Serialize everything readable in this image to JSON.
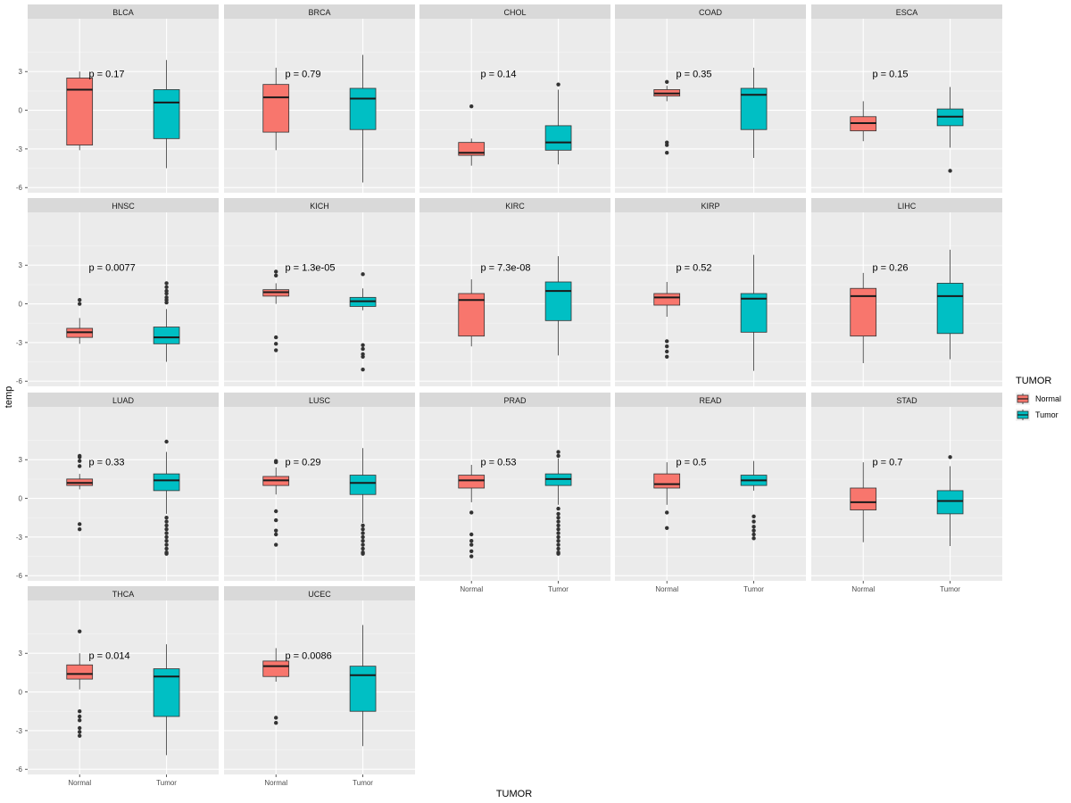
{
  "chart_data": {
    "type": "boxplot",
    "facet_by": "cancer_type",
    "x_label": "TUMOR",
    "y_label": "temp",
    "y_ticks": [
      -6,
      -3,
      0,
      3
    ],
    "ylim": [
      -6.4,
      7.1
    ],
    "categories": [
      "Normal",
      "Tumor"
    ],
    "legend": {
      "title": "TUMOR",
      "position": "right",
      "entries": [
        {
          "label": "Normal",
          "color": "#F8766D"
        },
        {
          "label": "Tumor",
          "color": "#00BFC4"
        }
      ]
    },
    "panels": [
      {
        "name": "BLCA",
        "p": "p = 0.17",
        "normal": {
          "q1": -2.7,
          "median": 1.6,
          "q3": 2.5,
          "low": -3.1,
          "high": 3.0,
          "outliers": []
        },
        "tumor": {
          "q1": -2.2,
          "median": 0.6,
          "q3": 1.6,
          "low": -4.5,
          "high": 3.9,
          "outliers": []
        }
      },
      {
        "name": "BRCA",
        "p": "p = 0.79",
        "normal": {
          "q1": -1.7,
          "median": 1.0,
          "q3": 2.0,
          "low": -3.1,
          "high": 3.3,
          "outliers": []
        },
        "tumor": {
          "q1": -1.5,
          "median": 0.9,
          "q3": 1.7,
          "low": -5.6,
          "high": 4.3,
          "outliers": []
        }
      },
      {
        "name": "CHOL",
        "p": "p = 0.14",
        "normal": {
          "q1": -3.5,
          "median": -3.3,
          "q3": -2.5,
          "low": -4.3,
          "high": -2.2,
          "outliers": [
            0.3
          ]
        },
        "tumor": {
          "q1": -3.1,
          "median": -2.5,
          "q3": -1.2,
          "low": -4.2,
          "high": 1.6,
          "outliers": [
            2.0
          ]
        }
      },
      {
        "name": "COAD",
        "p": "p = 0.35",
        "normal": {
          "q1": 1.1,
          "median": 1.3,
          "q3": 1.6,
          "low": 0.7,
          "high": 1.9,
          "outliers": [
            2.2,
            -2.5,
            -2.7,
            -3.3
          ]
        },
        "tumor": {
          "q1": -1.5,
          "median": 1.2,
          "q3": 1.7,
          "low": -3.7,
          "high": 3.3,
          "outliers": []
        }
      },
      {
        "name": "ESCA",
        "p": "p = 0.15",
        "normal": {
          "q1": -1.6,
          "median": -1.0,
          "q3": -0.5,
          "low": -2.4,
          "high": 0.7,
          "outliers": []
        },
        "tumor": {
          "q1": -1.2,
          "median": -0.5,
          "q3": 0.1,
          "low": -2.9,
          "high": 1.8,
          "outliers": [
            -4.7
          ]
        }
      },
      {
        "name": "HNSC",
        "p": "p = 0.0077",
        "normal": {
          "q1": -2.6,
          "median": -2.2,
          "q3": -1.9,
          "low": -3.1,
          "high": -1.1,
          "outliers": [
            0.3,
            0.0
          ]
        },
        "tumor": {
          "q1": -3.1,
          "median": -2.6,
          "q3": -1.8,
          "low": -4.5,
          "high": -0.4,
          "outliers": [
            0.1,
            0.3,
            0.5,
            0.8,
            1.0,
            1.3,
            1.6
          ]
        }
      },
      {
        "name": "KICH",
        "p": "p = 1.3e-05",
        "normal": {
          "q1": 0.6,
          "median": 0.9,
          "q3": 1.1,
          "low": 0.0,
          "high": 1.6,
          "outliers": [
            2.5,
            2.2,
            -2.6,
            -3.1,
            -3.6
          ]
        },
        "tumor": {
          "q1": -0.2,
          "median": 0.2,
          "q3": 0.5,
          "low": -0.5,
          "high": 1.2,
          "outliers": [
            2.3,
            -3.2,
            -3.5,
            -3.9,
            -4.1,
            -5.1
          ]
        }
      },
      {
        "name": "KIRC",
        "p": "p = 7.3e-08",
        "normal": {
          "q1": -2.5,
          "median": 0.3,
          "q3": 0.8,
          "low": -3.3,
          "high": 1.9,
          "outliers": []
        },
        "tumor": {
          "q1": -1.3,
          "median": 1.0,
          "q3": 1.7,
          "low": -4.0,
          "high": 3.7,
          "outliers": []
        }
      },
      {
        "name": "KIRP",
        "p": "p = 0.52",
        "normal": {
          "q1": -0.1,
          "median": 0.5,
          "q3": 0.8,
          "low": -1.0,
          "high": 1.7,
          "outliers": [
            -2.9,
            -3.3,
            -3.7,
            -4.1
          ]
        },
        "tumor": {
          "q1": -2.2,
          "median": 0.4,
          "q3": 0.8,
          "low": -5.2,
          "high": 3.8,
          "outliers": []
        }
      },
      {
        "name": "LIHC",
        "p": "p = 0.26",
        "normal": {
          "q1": -2.5,
          "median": 0.6,
          "q3": 1.2,
          "low": -4.6,
          "high": 2.4,
          "outliers": []
        },
        "tumor": {
          "q1": -2.3,
          "median": 0.6,
          "q3": 1.6,
          "low": -4.3,
          "high": 4.2,
          "outliers": []
        }
      },
      {
        "name": "LUAD",
        "p": "p = 0.33",
        "normal": {
          "q1": 1.0,
          "median": 1.2,
          "q3": 1.5,
          "low": 0.7,
          "high": 1.9,
          "outliers": [
            2.5,
            2.9,
            3.2,
            3.3,
            -2.0,
            -2.4
          ]
        },
        "tumor": {
          "q1": 0.6,
          "median": 1.4,
          "q3": 1.9,
          "low": -1.2,
          "high": 3.6,
          "outliers": [
            4.4,
            -1.5,
            -1.8,
            -2.1,
            -2.4,
            -2.7,
            -3.0,
            -3.3,
            -3.6,
            -3.9,
            -4.2,
            -4.3
          ]
        }
      },
      {
        "name": "LUSC",
        "p": "p = 0.29",
        "normal": {
          "q1": 1.0,
          "median": 1.4,
          "q3": 1.7,
          "low": 0.3,
          "high": 2.4,
          "outliers": [
            2.8,
            2.9,
            -1.0,
            -1.7,
            -2.5,
            -2.8,
            -3.6
          ]
        },
        "tumor": {
          "q1": 0.3,
          "median": 1.2,
          "q3": 1.8,
          "low": -1.9,
          "high": 3.9,
          "outliers": [
            -2.1,
            -2.4,
            -2.7,
            -3.0,
            -3.3,
            -3.6,
            -3.9,
            -4.2,
            -4.3
          ]
        }
      },
      {
        "name": "PRAD",
        "p": "p = 0.53",
        "normal": {
          "q1": 0.8,
          "median": 1.4,
          "q3": 1.8,
          "low": -0.3,
          "high": 2.6,
          "outliers": [
            -1.1,
            -2.8,
            -3.3,
            -3.6,
            -4.1,
            -4.5
          ]
        },
        "tumor": {
          "q1": 1.0,
          "median": 1.5,
          "q3": 1.9,
          "low": -0.5,
          "high": 3.1,
          "outliers": [
            3.3,
            3.6,
            -0.8,
            -1.2,
            -1.5,
            -1.8,
            -2.1,
            -2.4,
            -2.7,
            -3.0,
            -3.3,
            -3.6,
            -3.9,
            -4.2,
            -4.3
          ]
        }
      },
      {
        "name": "READ",
        "p": "p = 0.5",
        "normal": {
          "q1": 0.8,
          "median": 1.1,
          "q3": 1.9,
          "low": -0.5,
          "high": 2.8,
          "outliers": [
            -1.1,
            -2.3
          ]
        },
        "tumor": {
          "q1": 1.0,
          "median": 1.4,
          "q3": 1.8,
          "low": 0.6,
          "high": 2.9,
          "outliers": [
            -1.4,
            -1.8,
            -2.2,
            -2.5,
            -2.8,
            -3.1
          ]
        }
      },
      {
        "name": "STAD",
        "p": "p = 0.7",
        "normal": {
          "q1": -0.9,
          "median": -0.3,
          "q3": 0.8,
          "low": -3.4,
          "high": 2.8,
          "outliers": []
        },
        "tumor": {
          "q1": -1.2,
          "median": -0.2,
          "q3": 0.6,
          "low": -3.7,
          "high": 2.5,
          "outliers": [
            3.2
          ]
        }
      },
      {
        "name": "THCA",
        "p": "p = 0.014",
        "normal": {
          "q1": 1.0,
          "median": 1.4,
          "q3": 2.1,
          "low": 0.2,
          "high": 3.0,
          "outliers": [
            4.7,
            -1.5,
            -1.9,
            -2.2,
            -2.8,
            -3.1,
            -3.4
          ]
        },
        "tumor": {
          "q1": -1.9,
          "median": 1.2,
          "q3": 1.8,
          "low": -4.9,
          "high": 3.7,
          "outliers": []
        }
      },
      {
        "name": "UCEC",
        "p": "p = 0.0086",
        "normal": {
          "q1": 1.2,
          "median": 2.0,
          "q3": 2.4,
          "low": 0.8,
          "high": 3.4,
          "outliers": [
            -2.0,
            -2.4
          ]
        },
        "tumor": {
          "q1": -1.5,
          "median": 1.3,
          "q3": 2.0,
          "low": -4.2,
          "high": 5.2,
          "outliers": []
        }
      }
    ]
  }
}
